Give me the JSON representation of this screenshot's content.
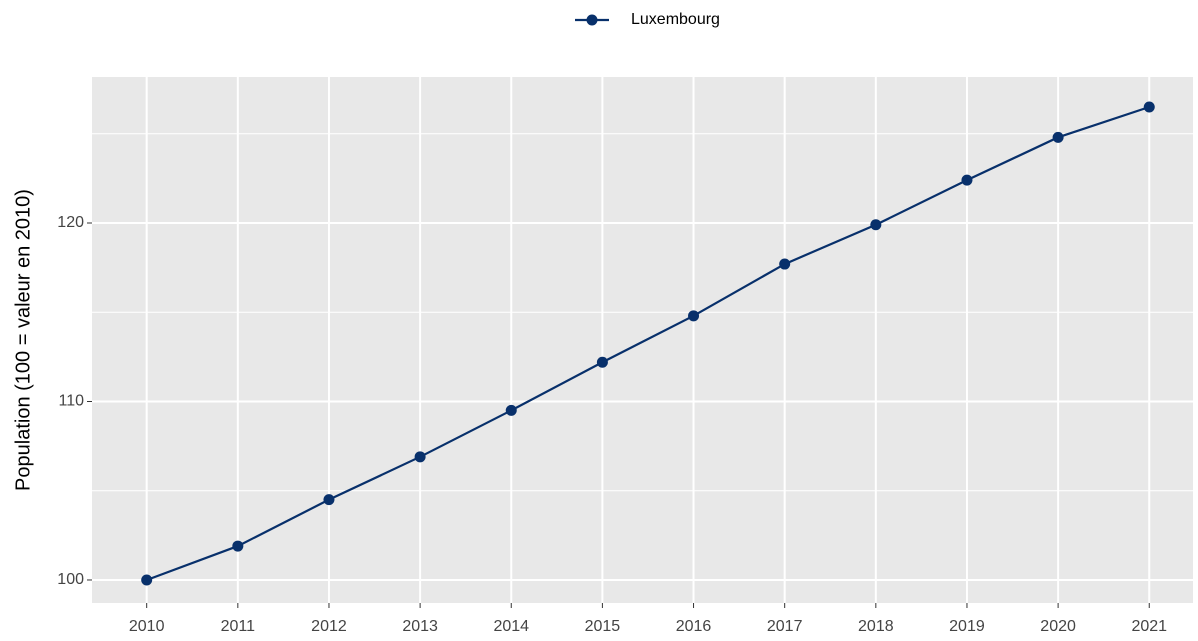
{
  "chart_data": {
    "type": "line",
    "ylabel": "Population (100 = valeur en 2010)",
    "x": [
      2010,
      2011,
      2012,
      2013,
      2014,
      2015,
      2016,
      2017,
      2018,
      2019,
      2020,
      2021
    ],
    "series": [
      {
        "name": "Luxembourg",
        "color": "#08306b",
        "values": [
          100,
          101.9,
          104.5,
          106.9,
          109.5,
          112.2,
          114.8,
          117.7,
          119.9,
          122.4,
          124.8,
          126.5
        ]
      }
    ],
    "xlim": [
      2009.4,
      2021.48
    ],
    "xticks": [
      2010,
      2011,
      2012,
      2013,
      2014,
      2015,
      2016,
      2017,
      2018,
      2019,
      2020,
      2021
    ],
    "ylim": [
      98.71,
      128.18
    ],
    "yticks": [
      100,
      110,
      120
    ],
    "yminor": [
      105,
      115,
      125
    ],
    "grid": true,
    "legend": "top"
  }
}
